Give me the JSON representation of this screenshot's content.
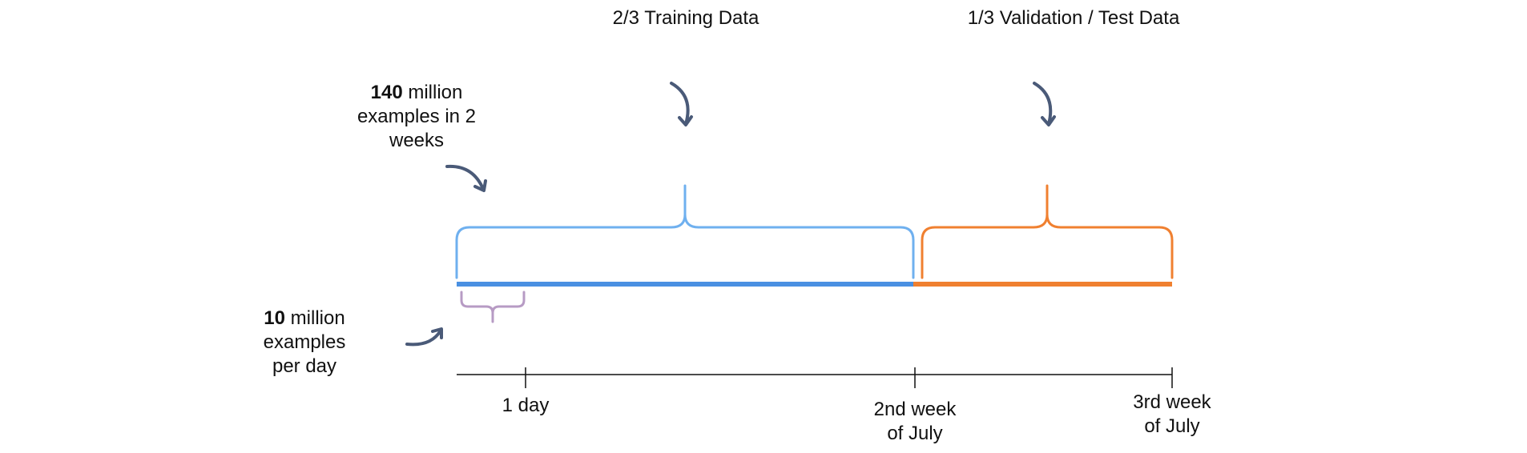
{
  "headers": {
    "training": "2/3 Training Data",
    "validation": "1/3 Validation / Test Data"
  },
  "notes": {
    "two_weeks": {
      "count": "140",
      "line1_rest": " million",
      "line2": "examples in 2",
      "line3": "weeks"
    },
    "per_day": {
      "count": "10",
      "line1_rest": " million",
      "line2": "examples",
      "line3": "per day"
    }
  },
  "axis": {
    "tick_day": "1 day",
    "tick_2nd_line1": "2nd week",
    "tick_2nd_line2": "of July",
    "tick_3rd_line1": "3rd week",
    "tick_3rd_line2": "of July"
  },
  "colors": {
    "training": "#4a90e2",
    "training_brace": "#6fb0ef",
    "validation": "#f08030",
    "day_brace": "#b79bc4",
    "arrow": "#4a5a78",
    "axis": "#111111"
  },
  "split": {
    "training_fraction": 0.6667,
    "validation_fraction": 0.3333
  }
}
